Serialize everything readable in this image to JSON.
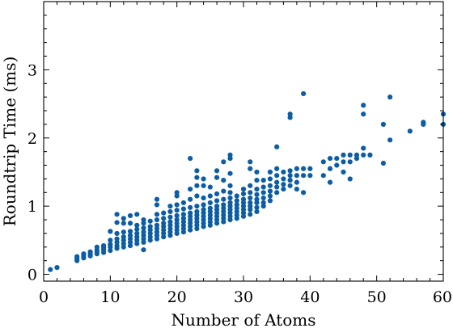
{
  "chart_data": {
    "type": "scatter",
    "title": "",
    "xlabel": "Number of Atoms",
    "ylabel": "Roundtrip Time (ms)",
    "xlim": [
      0,
      60
    ],
    "ylim": [
      -0.1,
      4.0
    ],
    "x_ticks": [
      0,
      10,
      20,
      30,
      40,
      50,
      60
    ],
    "y_ticks": [
      0,
      1,
      2,
      3
    ],
    "x_minor_step": 2,
    "y_minor_step": 0.2,
    "grid": false,
    "color": "#0c5da5",
    "series": [
      {
        "points": [
          [
            1,
            0.07
          ],
          [
            2,
            0.1
          ],
          [
            5,
            0.2
          ],
          [
            5,
            0.23
          ],
          [
            5,
            0.26
          ],
          [
            6,
            0.24
          ],
          [
            6,
            0.27
          ],
          [
            6,
            0.3
          ],
          [
            7,
            0.27
          ],
          [
            7,
            0.3
          ],
          [
            7,
            0.33
          ],
          [
            8,
            0.3
          ],
          [
            8,
            0.33
          ],
          [
            8,
            0.36
          ],
          [
            8,
            0.4
          ],
          [
            9,
            0.32
          ],
          [
            9,
            0.36
          ],
          [
            9,
            0.39
          ],
          [
            9,
            0.42
          ],
          [
            10,
            0.35
          ],
          [
            10,
            0.4
          ],
          [
            10,
            0.44
          ],
          [
            10,
            0.5
          ],
          [
            10,
            0.63
          ],
          [
            11,
            0.38
          ],
          [
            11,
            0.42
          ],
          [
            11,
            0.47
          ],
          [
            11,
            0.52
          ],
          [
            11,
            0.6
          ],
          [
            11,
            0.76
          ],
          [
            11,
            0.88
          ],
          [
            12,
            0.4
          ],
          [
            12,
            0.45
          ],
          [
            12,
            0.5
          ],
          [
            12,
            0.55
          ],
          [
            12,
            0.62
          ],
          [
            12,
            0.75
          ],
          [
            12,
            0.82
          ],
          [
            13,
            0.42
          ],
          [
            13,
            0.47
          ],
          [
            13,
            0.52
          ],
          [
            13,
            0.57
          ],
          [
            13,
            0.63
          ],
          [
            13,
            0.75
          ],
          [
            13,
            0.86
          ],
          [
            14,
            0.45
          ],
          [
            14,
            0.5
          ],
          [
            14,
            0.55
          ],
          [
            14,
            0.6
          ],
          [
            14,
            0.66
          ],
          [
            14,
            0.72
          ],
          [
            14,
            0.88
          ],
          [
            15,
            0.47
          ],
          [
            15,
            0.52
          ],
          [
            15,
            0.57
          ],
          [
            15,
            0.62
          ],
          [
            15,
            0.68
          ],
          [
            15,
            0.75
          ],
          [
            15,
            0.8
          ],
          [
            15,
            0.36
          ],
          [
            16,
            0.5
          ],
          [
            16,
            0.55
          ],
          [
            16,
            0.6
          ],
          [
            16,
            0.65
          ],
          [
            16,
            0.7
          ],
          [
            16,
            0.78
          ],
          [
            17,
            0.52
          ],
          [
            17,
            0.57
          ],
          [
            17,
            0.62
          ],
          [
            17,
            0.67
          ],
          [
            17,
            0.72
          ],
          [
            17,
            0.8
          ],
          [
            17,
            0.88
          ],
          [
            17,
            1.02
          ],
          [
            17,
            1.1
          ],
          [
            18,
            0.55
          ],
          [
            18,
            0.6
          ],
          [
            18,
            0.65
          ],
          [
            18,
            0.7
          ],
          [
            18,
            0.75
          ],
          [
            18,
            0.82
          ],
          [
            18,
            0.9
          ],
          [
            19,
            0.57
          ],
          [
            19,
            0.62
          ],
          [
            19,
            0.67
          ],
          [
            19,
            0.72
          ],
          [
            19,
            0.77
          ],
          [
            19,
            0.84
          ],
          [
            19,
            0.92
          ],
          [
            19,
            1.0
          ],
          [
            20,
            0.6
          ],
          [
            20,
            0.65
          ],
          [
            20,
            0.7
          ],
          [
            20,
            0.75
          ],
          [
            20,
            0.8
          ],
          [
            20,
            0.86
          ],
          [
            20,
            0.94
          ],
          [
            20,
            1.02
          ],
          [
            20,
            1.15
          ],
          [
            20,
            1.2
          ],
          [
            21,
            0.62
          ],
          [
            21,
            0.67
          ],
          [
            21,
            0.72
          ],
          [
            21,
            0.77
          ],
          [
            21,
            0.82
          ],
          [
            21,
            0.88
          ],
          [
            21,
            0.96
          ],
          [
            21,
            1.05
          ],
          [
            22,
            0.65
          ],
          [
            22,
            0.7
          ],
          [
            22,
            0.75
          ],
          [
            22,
            0.8
          ],
          [
            22,
            0.85
          ],
          [
            22,
            0.9
          ],
          [
            22,
            0.98
          ],
          [
            22,
            1.1
          ],
          [
            22,
            1.25
          ],
          [
            22,
            1.7
          ],
          [
            23,
            0.67
          ],
          [
            23,
            0.72
          ],
          [
            23,
            0.77
          ],
          [
            23,
            0.82
          ],
          [
            23,
            0.87
          ],
          [
            23,
            0.92
          ],
          [
            23,
            1.0
          ],
          [
            23,
            1.15
          ],
          [
            23,
            1.3
          ],
          [
            23,
            1.42
          ],
          [
            23,
            1.52
          ],
          [
            24,
            0.7
          ],
          [
            24,
            0.75
          ],
          [
            24,
            0.8
          ],
          [
            24,
            0.85
          ],
          [
            24,
            0.9
          ],
          [
            24,
            0.95
          ],
          [
            24,
            1.02
          ],
          [
            24,
            1.12
          ],
          [
            24,
            1.3
          ],
          [
            24,
            1.4
          ],
          [
            25,
            0.72
          ],
          [
            25,
            0.77
          ],
          [
            25,
            0.82
          ],
          [
            25,
            0.87
          ],
          [
            25,
            0.92
          ],
          [
            25,
            0.97
          ],
          [
            25,
            1.05
          ],
          [
            25,
            1.15
          ],
          [
            25,
            1.28
          ],
          [
            26,
            0.75
          ],
          [
            26,
            0.8
          ],
          [
            26,
            0.85
          ],
          [
            26,
            0.9
          ],
          [
            26,
            0.95
          ],
          [
            26,
            1.0
          ],
          [
            26,
            1.08
          ],
          [
            26,
            1.18
          ],
          [
            26,
            1.42
          ],
          [
            26,
            1.52
          ],
          [
            27,
            0.77
          ],
          [
            27,
            0.82
          ],
          [
            27,
            0.87
          ],
          [
            27,
            0.92
          ],
          [
            27,
            0.97
          ],
          [
            27,
            1.02
          ],
          [
            27,
            1.1
          ],
          [
            27,
            1.22
          ],
          [
            27,
            1.38
          ],
          [
            27,
            1.65
          ],
          [
            28,
            0.8
          ],
          [
            28,
            0.85
          ],
          [
            28,
            0.9
          ],
          [
            28,
            0.95
          ],
          [
            28,
            1.0
          ],
          [
            28,
            1.05
          ],
          [
            28,
            1.12
          ],
          [
            28,
            1.2
          ],
          [
            28,
            1.3
          ],
          [
            28,
            1.48
          ],
          [
            28,
            1.7
          ],
          [
            28,
            1.75
          ],
          [
            29,
            0.82
          ],
          [
            29,
            0.87
          ],
          [
            29,
            0.92
          ],
          [
            29,
            0.97
          ],
          [
            29,
            1.02
          ],
          [
            29,
            1.08
          ],
          [
            29,
            1.15
          ],
          [
            30,
            0.85
          ],
          [
            30,
            0.9
          ],
          [
            30,
            0.95
          ],
          [
            30,
            1.0
          ],
          [
            30,
            1.05
          ],
          [
            30,
            1.1
          ],
          [
            30,
            1.18
          ],
          [
            30,
            1.25
          ],
          [
            31,
            0.88
          ],
          [
            31,
            0.95
          ],
          [
            31,
            1.0
          ],
          [
            31,
            1.05
          ],
          [
            31,
            1.12
          ],
          [
            31,
            1.2
          ],
          [
            31,
            1.3
          ],
          [
            31,
            1.55
          ],
          [
            31,
            1.65
          ],
          [
            32,
            0.92
          ],
          [
            32,
            0.98
          ],
          [
            32,
            1.05
          ],
          [
            32,
            1.1
          ],
          [
            32,
            1.17
          ],
          [
            32,
            1.25
          ],
          [
            32,
            1.38
          ],
          [
            32,
            1.5
          ],
          [
            33,
            1.0
          ],
          [
            33,
            1.05
          ],
          [
            33,
            1.12
          ],
          [
            33,
            1.2
          ],
          [
            33,
            1.28
          ],
          [
            33,
            1.38
          ],
          [
            34,
            1.08
          ],
          [
            34,
            1.15
          ],
          [
            34,
            1.22
          ],
          [
            34,
            1.3
          ],
          [
            34,
            1.4
          ],
          [
            34,
            1.5
          ],
          [
            35,
            1.2
          ],
          [
            35,
            1.28
          ],
          [
            35,
            1.35
          ],
          [
            35,
            1.45
          ],
          [
            35,
            1.55
          ],
          [
            35,
            1.87
          ],
          [
            36,
            1.25
          ],
          [
            36,
            1.32
          ],
          [
            36,
            1.4
          ],
          [
            36,
            1.5
          ],
          [
            37,
            1.3
          ],
          [
            37,
            1.38
          ],
          [
            37,
            1.45
          ],
          [
            37,
            1.52
          ],
          [
            37,
            2.3
          ],
          [
            37,
            2.35
          ],
          [
            38,
            1.25
          ],
          [
            38,
            1.35
          ],
          [
            38,
            1.45
          ],
          [
            38,
            1.55
          ],
          [
            39,
            1.2
          ],
          [
            39,
            1.45
          ],
          [
            39,
            1.55
          ],
          [
            39,
            2.65
          ],
          [
            40,
            1.45
          ],
          [
            40,
            1.55
          ],
          [
            42,
            1.45
          ],
          [
            42,
            1.65
          ],
          [
            43,
            1.35
          ],
          [
            43,
            1.55
          ],
          [
            43,
            1.7
          ],
          [
            44,
            1.6
          ],
          [
            44,
            1.7
          ],
          [
            45,
            1.5
          ],
          [
            45,
            1.65
          ],
          [
            45,
            1.75
          ],
          [
            46,
            1.4
          ],
          [
            46,
            1.65
          ],
          [
            46,
            1.75
          ],
          [
            47,
            1.7
          ],
          [
            47,
            1.75
          ],
          [
            48,
            1.75
          ],
          [
            48,
            1.85
          ],
          [
            48,
            2.35
          ],
          [
            48,
            2.48
          ],
          [
            49,
            1.75
          ],
          [
            51,
            1.63
          ],
          [
            51,
            2.2
          ],
          [
            52,
            1.97
          ],
          [
            52,
            2.6
          ],
          [
            55,
            2.1
          ],
          [
            57,
            2.2
          ],
          [
            57,
            2.23
          ],
          [
            60,
            2.2
          ],
          [
            60,
            2.35
          ]
        ]
      }
    ]
  }
}
